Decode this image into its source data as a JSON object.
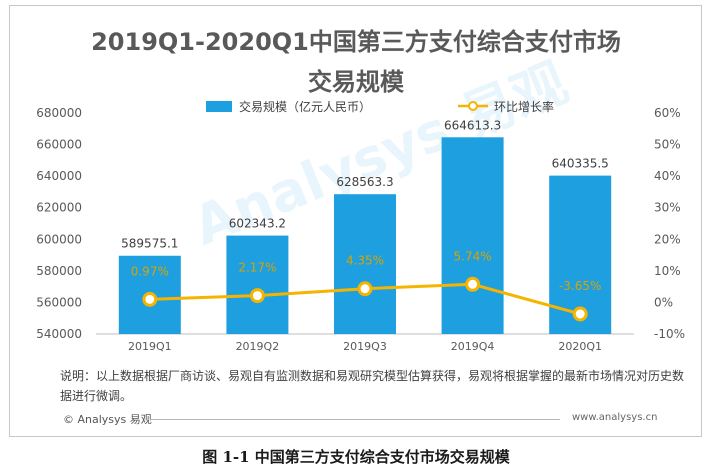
{
  "title_line1": "2019Q1-2020Q1中国第三方支付综合支付市场",
  "title_line2": "交易规模",
  "legend": {
    "bar_label": "交易规模（亿元人民币）",
    "line_label": "环比增长率"
  },
  "note": "说明：以上数据根据厂商访谈、易观自有监测数据和易观研究模型估算获得，易观将根据掌握的最新市场情况对历史数据进行微调。",
  "footer_logo": "© Analysys 易观",
  "footer_url": "www.analysys.cn",
  "watermark_text": "Analysys 易观",
  "caption": "图 1-1  中国第三方支付综合支付市场交易规模",
  "colors": {
    "bar": "#1e9fe0",
    "line": "#f5b400",
    "text": "#595959"
  },
  "chart_data": {
    "type": "bar",
    "categories": [
      "2019Q1",
      "2019Q2",
      "2019Q3",
      "2019Q4",
      "2020Q1"
    ],
    "series": [
      {
        "name": "交易规模（亿元人民币）",
        "type": "bar",
        "axis": "left",
        "values": [
          589575.1,
          602343.2,
          628563.3,
          664613.3,
          640335.5
        ],
        "labels": [
          "589575.1",
          "602343.2",
          "628563.3",
          "664613.3",
          "640335.5"
        ]
      },
      {
        "name": "环比增长率",
        "type": "line",
        "axis": "right",
        "values": [
          0.97,
          2.17,
          4.35,
          5.74,
          -3.65
        ],
        "labels": [
          "0.97%",
          "2.17%",
          "4.35%",
          "5.74%",
          "-3.65%"
        ]
      }
    ],
    "y_left": {
      "min": 540000,
      "max": 680000,
      "step": 20000,
      "ticks": [
        "540000",
        "560000",
        "580000",
        "600000",
        "620000",
        "640000",
        "660000",
        "680000"
      ]
    },
    "y_right": {
      "min": -10,
      "max": 60,
      "step": 10,
      "ticks": [
        "-10%",
        "0%",
        "10%",
        "20%",
        "30%",
        "40%",
        "50%",
        "60%"
      ]
    },
    "grid": false,
    "legend_position": "top"
  }
}
